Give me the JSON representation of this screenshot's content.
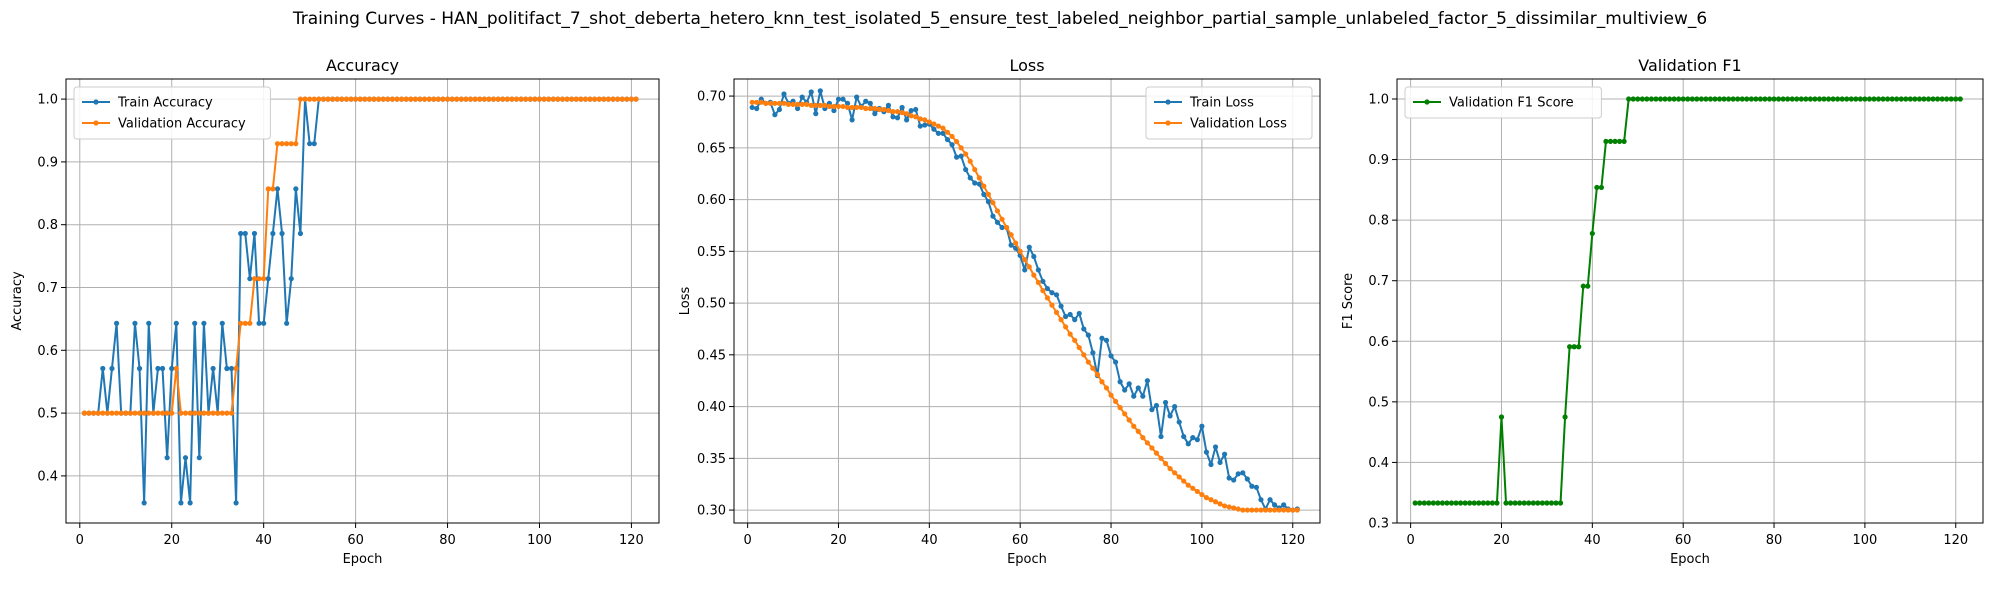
{
  "suptitle": "Training Curves - HAN_politifact_7_shot_deberta_hetero_knn_test_isolated_5_ensure_test_labeled_neighbor_partial_sample_unlabeled_factor_5_dissimilar_multiview_6",
  "colors": {
    "blue": "#1f77b4",
    "orange": "#ff7f0e",
    "green": "#008000",
    "grid": "#b0b0b0"
  },
  "chart_data": [
    {
      "type": "line",
      "title": "Accuracy",
      "xlabel": "Epoch",
      "ylabel": "Accuracy",
      "xlim": [
        -3,
        126
      ],
      "ylim": [
        0.325,
        1.032
      ],
      "xticks": [
        0,
        20,
        40,
        60,
        80,
        100,
        120
      ],
      "yticks": [
        0.4,
        0.5,
        0.6,
        0.7,
        0.8,
        0.9,
        1.0
      ],
      "ytick_labels": [
        "0.4",
        "0.5",
        "0.6",
        "0.7",
        "0.8",
        "0.9",
        "1.0"
      ],
      "grid": true,
      "legend": "upper left",
      "series": [
        {
          "name": "Train Accuracy",
          "color": "#1f77b4",
          "x_start": 1,
          "values": [
            0.5,
            0.5,
            0.5,
            0.5,
            0.571,
            0.5,
            0.571,
            0.643,
            0.5,
            0.5,
            0.5,
            0.643,
            0.571,
            0.357,
            0.643,
            0.5,
            0.571,
            0.571,
            0.429,
            0.571,
            0.643,
            0.357,
            0.429,
            0.357,
            0.643,
            0.429,
            0.643,
            0.5,
            0.571,
            0.5,
            0.643,
            0.571,
            0.571,
            0.357,
            0.786,
            0.786,
            0.714,
            0.786,
            0.643,
            0.643,
            0.714,
            0.786,
            0.857,
            0.786,
            0.643,
            0.714,
            0.857,
            0.786,
            1.0,
            0.929,
            0.929,
            1.0,
            1.0,
            1.0,
            1.0,
            1.0,
            1.0,
            1.0,
            1.0,
            1.0,
            1.0,
            1.0,
            1.0,
            1.0,
            1.0,
            1.0,
            1.0,
            1.0,
            1.0,
            1.0,
            1.0,
            1.0,
            1.0,
            1.0,
            1.0,
            1.0,
            1.0,
            1.0,
            1.0,
            1.0,
            1.0,
            1.0,
            1.0,
            1.0,
            1.0,
            1.0,
            1.0,
            1.0,
            1.0,
            1.0,
            1.0,
            1.0,
            1.0,
            1.0,
            1.0,
            1.0,
            1.0,
            1.0,
            1.0,
            1.0,
            1.0,
            1.0,
            1.0,
            1.0,
            1.0,
            1.0,
            1.0,
            1.0,
            1.0,
            1.0,
            1.0,
            1.0,
            1.0,
            1.0,
            1.0,
            1.0,
            1.0,
            1.0,
            1.0,
            1.0,
            1.0
          ]
        },
        {
          "name": "Validation Accuracy",
          "color": "#ff7f0e",
          "x_start": 1,
          "values": [
            0.5,
            0.5,
            0.5,
            0.5,
            0.5,
            0.5,
            0.5,
            0.5,
            0.5,
            0.5,
            0.5,
            0.5,
            0.5,
            0.5,
            0.5,
            0.5,
            0.5,
            0.5,
            0.5,
            0.5,
            0.571,
            0.5,
            0.5,
            0.5,
            0.5,
            0.5,
            0.5,
            0.5,
            0.5,
            0.5,
            0.5,
            0.5,
            0.5,
            0.571,
            0.643,
            0.643,
            0.643,
            0.714,
            0.714,
            0.714,
            0.857,
            0.857,
            0.929,
            0.929,
            0.929,
            0.929,
            0.929,
            1.0,
            1.0,
            1.0,
            1.0,
            1.0,
            1.0,
            1.0,
            1.0,
            1.0,
            1.0,
            1.0,
            1.0,
            1.0,
            1.0,
            1.0,
            1.0,
            1.0,
            1.0,
            1.0,
            1.0,
            1.0,
            1.0,
            1.0,
            1.0,
            1.0,
            1.0,
            1.0,
            1.0,
            1.0,
            1.0,
            1.0,
            1.0,
            1.0,
            1.0,
            1.0,
            1.0,
            1.0,
            1.0,
            1.0,
            1.0,
            1.0,
            1.0,
            1.0,
            1.0,
            1.0,
            1.0,
            1.0,
            1.0,
            1.0,
            1.0,
            1.0,
            1.0,
            1.0,
            1.0,
            1.0,
            1.0,
            1.0,
            1.0,
            1.0,
            1.0,
            1.0,
            1.0,
            1.0,
            1.0,
            1.0,
            1.0,
            1.0,
            1.0,
            1.0,
            1.0,
            1.0,
            1.0,
            1.0,
            1.0
          ]
        }
      ]
    },
    {
      "type": "line",
      "title": "Loss",
      "xlabel": "Epoch",
      "ylabel": "Loss",
      "xlim": [
        -3,
        126
      ],
      "ylim": [
        0.2875,
        0.7165
      ],
      "xticks": [
        0,
        20,
        40,
        60,
        80,
        100,
        120
      ],
      "yticks": [
        0.3,
        0.35,
        0.4,
        0.45,
        0.5,
        0.55,
        0.6,
        0.65,
        0.7
      ],
      "ytick_labels": [
        "0.30",
        "0.35",
        "0.40",
        "0.45",
        "0.50",
        "0.55",
        "0.60",
        "0.65",
        "0.70"
      ],
      "grid": true,
      "legend": "upper right",
      "series": [
        {
          "name": "Train Loss",
          "color": "#1f77b4",
          "x_start": 1,
          "values": [
            0.689,
            0.688,
            0.697,
            0.693,
            0.694,
            0.682,
            0.687,
            0.702,
            0.693,
            0.695,
            0.688,
            0.699,
            0.694,
            0.704,
            0.683,
            0.705,
            0.688,
            0.693,
            0.686,
            0.697,
            0.697,
            0.693,
            0.677,
            0.699,
            0.69,
            0.695,
            0.693,
            0.683,
            0.688,
            0.685,
            0.691,
            0.68,
            0.679,
            0.689,
            0.677,
            0.686,
            0.687,
            0.671,
            0.672,
            0.673,
            0.668,
            0.664,
            0.664,
            0.658,
            0.653,
            0.641,
            0.642,
            0.629,
            0.621,
            0.616,
            0.615,
            0.605,
            0.598,
            0.584,
            0.578,
            0.573,
            0.573,
            0.556,
            0.553,
            0.546,
            0.532,
            0.554,
            0.545,
            0.532,
            0.521,
            0.514,
            0.51,
            0.508,
            0.497,
            0.487,
            0.489,
            0.484,
            0.49,
            0.475,
            0.469,
            0.452,
            0.43,
            0.466,
            0.464,
            0.449,
            0.443,
            0.424,
            0.416,
            0.422,
            0.41,
            0.418,
            0.41,
            0.425,
            0.397,
            0.401,
            0.371,
            0.404,
            0.391,
            0.4,
            0.385,
            0.371,
            0.364,
            0.37,
            0.368,
            0.381,
            0.356,
            0.344,
            0.361,
            0.346,
            0.354,
            0.331,
            0.329,
            0.335,
            0.336,
            0.33,
            0.323,
            0.322,
            0.31,
            0.301,
            0.31,
            0.305,
            0.302,
            0.305,
            0.301,
            0.3,
            0.301
          ]
        },
        {
          "name": "Validation Loss",
          "color": "#ff7f0e",
          "x_start": 1,
          "values": [
            0.694,
            0.694,
            0.694,
            0.693,
            0.693,
            0.693,
            0.693,
            0.693,
            0.692,
            0.692,
            0.692,
            0.692,
            0.692,
            0.691,
            0.691,
            0.691,
            0.691,
            0.69,
            0.69,
            0.69,
            0.69,
            0.689,
            0.689,
            0.689,
            0.689,
            0.688,
            0.688,
            0.688,
            0.687,
            0.687,
            0.686,
            0.685,
            0.685,
            0.684,
            0.683,
            0.681,
            0.68,
            0.678,
            0.677,
            0.675,
            0.673,
            0.671,
            0.669,
            0.665,
            0.661,
            0.656,
            0.65,
            0.644,
            0.637,
            0.629,
            0.621,
            0.613,
            0.605,
            0.597,
            0.589,
            0.581,
            0.573,
            0.566,
            0.558,
            0.55,
            0.542,
            0.535,
            0.527,
            0.52,
            0.512,
            0.505,
            0.498,
            0.491,
            0.484,
            0.477,
            0.47,
            0.464,
            0.457,
            0.45,
            0.443,
            0.437,
            0.431,
            0.424,
            0.418,
            0.411,
            0.405,
            0.399,
            0.393,
            0.387,
            0.381,
            0.376,
            0.37,
            0.365,
            0.36,
            0.355,
            0.35,
            0.345,
            0.34,
            0.336,
            0.332,
            0.328,
            0.324,
            0.321,
            0.318,
            0.315,
            0.312,
            0.31,
            0.308,
            0.306,
            0.304,
            0.303,
            0.302,
            0.301,
            0.3,
            0.3,
            0.3,
            0.3,
            0.3,
            0.3,
            0.3,
            0.3,
            0.3,
            0.3,
            0.3,
            0.3,
            0.3
          ]
        }
      ]
    },
    {
      "type": "line",
      "title": "Validation F1",
      "xlabel": "Epoch",
      "ylabel": "F1 Score",
      "xlim": [
        -3,
        126
      ],
      "ylim": [
        0.3,
        1.033
      ],
      "xticks": [
        0,
        20,
        40,
        60,
        80,
        100,
        120
      ],
      "yticks": [
        0.3,
        0.4,
        0.5,
        0.6,
        0.7,
        0.8,
        0.9,
        1.0
      ],
      "ytick_labels": [
        "0.3",
        "0.4",
        "0.5",
        "0.6",
        "0.7",
        "0.8",
        "0.9",
        "1.0"
      ],
      "grid": true,
      "legend": "upper left",
      "series": [
        {
          "name": "Validation F1 Score",
          "color": "#008000",
          "x_start": 1,
          "values": [
            0.333,
            0.333,
            0.333,
            0.333,
            0.333,
            0.333,
            0.333,
            0.333,
            0.333,
            0.333,
            0.333,
            0.333,
            0.333,
            0.333,
            0.333,
            0.333,
            0.333,
            0.333,
            0.333,
            0.475,
            0.333,
            0.333,
            0.333,
            0.333,
            0.333,
            0.333,
            0.333,
            0.333,
            0.333,
            0.333,
            0.333,
            0.333,
            0.333,
            0.475,
            0.591,
            0.591,
            0.591,
            0.691,
            0.691,
            0.778,
            0.854,
            0.854,
            0.93,
            0.93,
            0.93,
            0.93,
            0.93,
            1.0,
            1.0,
            1.0,
            1.0,
            1.0,
            1.0,
            1.0,
            1.0,
            1.0,
            1.0,
            1.0,
            1.0,
            1.0,
            1.0,
            1.0,
            1.0,
            1.0,
            1.0,
            1.0,
            1.0,
            1.0,
            1.0,
            1.0,
            1.0,
            1.0,
            1.0,
            1.0,
            1.0,
            1.0,
            1.0,
            1.0,
            1.0,
            1.0,
            1.0,
            1.0,
            1.0,
            1.0,
            1.0,
            1.0,
            1.0,
            1.0,
            1.0,
            1.0,
            1.0,
            1.0,
            1.0,
            1.0,
            1.0,
            1.0,
            1.0,
            1.0,
            1.0,
            1.0,
            1.0,
            1.0,
            1.0,
            1.0,
            1.0,
            1.0,
            1.0,
            1.0,
            1.0,
            1.0,
            1.0,
            1.0,
            1.0,
            1.0,
            1.0,
            1.0,
            1.0,
            1.0,
            1.0,
            1.0,
            1.0
          ]
        }
      ]
    }
  ]
}
